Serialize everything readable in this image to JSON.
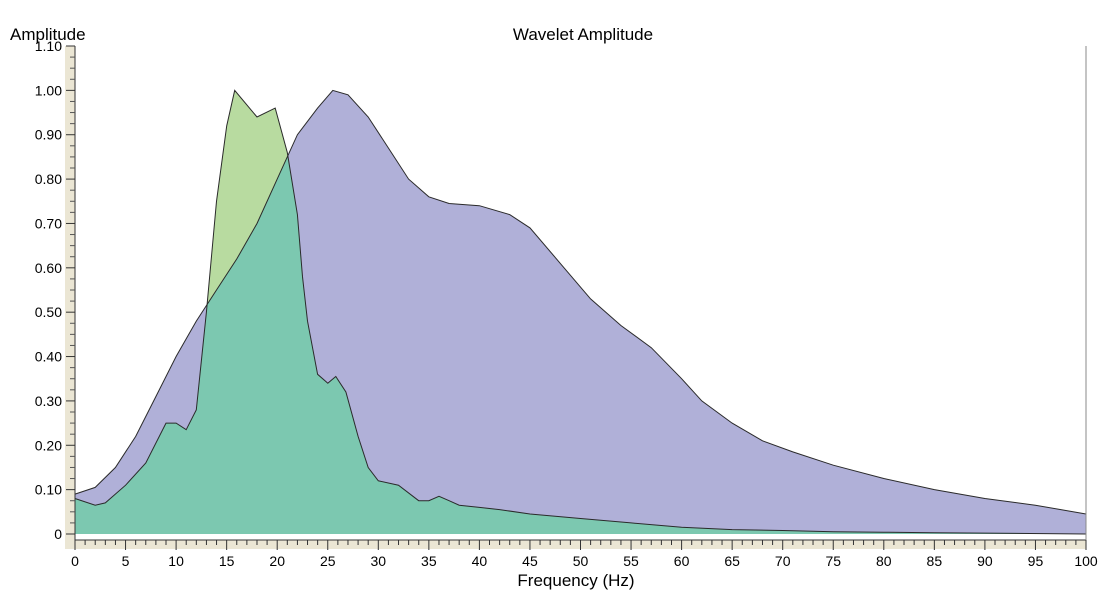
{
  "chart_data": {
    "type": "area",
    "title": "Wavelet Amplitude",
    "xlabel": "Frequency (Hz)",
    "ylabel": "Amplitude",
    "xlim": [
      0,
      100
    ],
    "ylim": [
      0,
      1.1
    ],
    "x_ticks": [
      0,
      5,
      10,
      15,
      20,
      25,
      30,
      35,
      40,
      45,
      50,
      55,
      60,
      65,
      70,
      75,
      80,
      85,
      90,
      95,
      100
    ],
    "y_ticks": [
      {
        "value": 0,
        "label": "0"
      },
      {
        "value": 0.1,
        "label": "0.10"
      },
      {
        "value": 0.2,
        "label": "0.20"
      },
      {
        "value": 0.3,
        "label": "0.30"
      },
      {
        "value": 0.4,
        "label": "0.40"
      },
      {
        "value": 0.5,
        "label": "0.50"
      },
      {
        "value": 0.6,
        "label": "0.60"
      },
      {
        "value": 0.7,
        "label": "0.70"
      },
      {
        "value": 0.8,
        "label": "0.80"
      },
      {
        "value": 0.9,
        "label": "0.90"
      },
      {
        "value": 1.0,
        "label": "1.00"
      },
      {
        "value": 1.1,
        "label": "1.10"
      }
    ],
    "grid": false,
    "legend": "none",
    "colors": {
      "purple_fill": "#b0b0d8",
      "green_fill": "#b8dba0",
      "overlap_fill": "#7cc8b0",
      "outline": "#2a2a2a",
      "axis_strip": "#ebe6d4"
    },
    "series": [
      {
        "fill": "#b0b0d8",
        "points": [
          [
            0,
            0.09
          ],
          [
            2,
            0.105
          ],
          [
            4,
            0.15
          ],
          [
            6,
            0.22
          ],
          [
            8,
            0.31
          ],
          [
            10,
            0.4
          ],
          [
            12,
            0.48
          ],
          [
            14,
            0.55
          ],
          [
            16,
            0.62
          ],
          [
            18,
            0.7
          ],
          [
            20,
            0.8
          ],
          [
            22,
            0.9
          ],
          [
            24,
            0.96
          ],
          [
            25.5,
            1.0
          ],
          [
            27,
            0.99
          ],
          [
            29,
            0.94
          ],
          [
            31,
            0.87
          ],
          [
            33,
            0.8
          ],
          [
            35,
            0.76
          ],
          [
            37,
            0.745
          ],
          [
            40,
            0.74
          ],
          [
            43,
            0.72
          ],
          [
            45,
            0.69
          ],
          [
            48,
            0.61
          ],
          [
            51,
            0.53
          ],
          [
            54,
            0.47
          ],
          [
            57,
            0.42
          ],
          [
            60,
            0.35
          ],
          [
            62,
            0.3
          ],
          [
            65,
            0.25
          ],
          [
            68,
            0.21
          ],
          [
            71,
            0.185
          ],
          [
            75,
            0.155
          ],
          [
            80,
            0.125
          ],
          [
            85,
            0.1
          ],
          [
            90,
            0.08
          ],
          [
            95,
            0.065
          ],
          [
            100,
            0.045
          ]
        ]
      },
      {
        "fill": "#b8dba0",
        "points": [
          [
            0,
            0.08
          ],
          [
            2,
            0.065
          ],
          [
            3,
            0.07
          ],
          [
            5,
            0.11
          ],
          [
            7,
            0.16
          ],
          [
            9,
            0.25
          ],
          [
            10,
            0.25
          ],
          [
            11,
            0.235
          ],
          [
            12,
            0.28
          ],
          [
            13,
            0.5
          ],
          [
            14,
            0.75
          ],
          [
            15,
            0.92
          ],
          [
            15.8,
            1.0
          ],
          [
            18,
            0.94
          ],
          [
            19.8,
            0.96
          ],
          [
            21,
            0.86
          ],
          [
            22,
            0.72
          ],
          [
            22.5,
            0.58
          ],
          [
            23,
            0.48
          ],
          [
            24,
            0.36
          ],
          [
            25,
            0.34
          ],
          [
            25.8,
            0.355
          ],
          [
            26.8,
            0.32
          ],
          [
            28,
            0.22
          ],
          [
            29,
            0.15
          ],
          [
            30,
            0.12
          ],
          [
            32,
            0.11
          ],
          [
            34,
            0.075
          ],
          [
            35,
            0.075
          ],
          [
            36,
            0.085
          ],
          [
            37,
            0.075
          ],
          [
            38,
            0.065
          ],
          [
            40,
            0.06
          ],
          [
            42,
            0.055
          ],
          [
            45,
            0.045
          ],
          [
            50,
            0.035
          ],
          [
            55,
            0.025
          ],
          [
            60,
            0.015
          ],
          [
            65,
            0.01
          ],
          [
            70,
            0.008
          ],
          [
            75,
            0.005
          ],
          [
            80,
            0.004
          ],
          [
            85,
            0.003
          ],
          [
            90,
            0.002
          ],
          [
            100,
            0.0
          ]
        ]
      }
    ]
  }
}
